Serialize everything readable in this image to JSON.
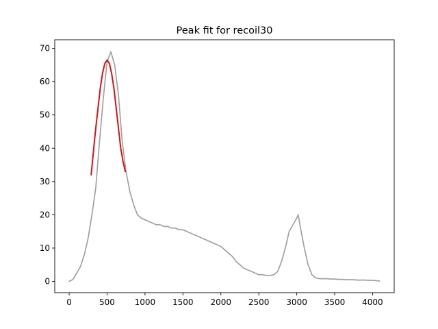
{
  "chart_data": {
    "type": "line",
    "title": "Peak fit for recoil30",
    "xlabel": "",
    "ylabel": "",
    "xlim": [
      -190,
      4285
    ],
    "ylim": [
      -3.4,
      72.6
    ],
    "xticks": [
      0,
      500,
      1000,
      1500,
      2000,
      2500,
      3000,
      3500,
      4000
    ],
    "yticks": [
      0,
      10,
      20,
      30,
      40,
      50,
      60,
      70
    ],
    "grid": false,
    "legend": "none",
    "series": [
      {
        "role": "data",
        "color": "#a0a0a0",
        "x": [
          0,
          50,
          100,
          150,
          200,
          250,
          300,
          350,
          400,
          450,
          500,
          550,
          600,
          650,
          700,
          750,
          800,
          850,
          900,
          950,
          1000,
          1050,
          1100,
          1150,
          1200,
          1250,
          1300,
          1350,
          1400,
          1450,
          1500,
          1550,
          1600,
          1650,
          1700,
          1750,
          1800,
          1850,
          1900,
          1950,
          2000,
          2050,
          2100,
          2150,
          2200,
          2250,
          2300,
          2350,
          2400,
          2450,
          2500,
          2550,
          2600,
          2650,
          2700,
          2750,
          2800,
          2850,
          2900,
          2950,
          3000,
          3020,
          3050,
          3100,
          3150,
          3200,
          3250,
          3300,
          3350,
          3400,
          3450,
          3500,
          3550,
          3600,
          3650,
          3700,
          3750,
          3800,
          3850,
          3900,
          3950,
          4000,
          4050,
          4090
        ],
        "y": [
          0,
          0.6,
          2.5,
          4.5,
          8,
          13,
          20,
          28,
          42,
          55,
          66,
          69,
          65,
          56,
          42,
          33,
          27,
          23,
          20,
          19,
          18.5,
          18,
          17.5,
          17,
          17,
          16.5,
          16.5,
          16,
          16,
          15.5,
          15.5,
          15,
          14.5,
          14,
          13.5,
          13,
          12.5,
          12,
          11.5,
          11,
          10.5,
          9.5,
          8.5,
          7.5,
          6,
          5,
          4,
          3.5,
          3,
          2.5,
          2,
          2,
          1.8,
          1.8,
          2,
          3,
          6,
          10,
          15,
          17,
          19,
          20,
          16,
          10,
          5,
          2,
          1,
          0.8,
          0.8,
          0.8,
          0.7,
          0.7,
          0.6,
          0.6,
          0.5,
          0.5,
          0.5,
          0.4,
          0.4,
          0.4,
          0.3,
          0.3,
          0.2,
          0.1
        ]
      },
      {
        "role": "fit",
        "color": "#e01010",
        "x": [
          290,
          320,
          350,
          380,
          410,
          440,
          470,
          500,
          530,
          560,
          590,
          620,
          650,
          680,
          710,
          740
        ],
        "y": [
          32,
          39,
          46,
          52,
          58,
          62.5,
          65.5,
          66.5,
          65.5,
          62.5,
          58,
          52,
          46,
          40,
          36,
          33
        ]
      }
    ]
  }
}
